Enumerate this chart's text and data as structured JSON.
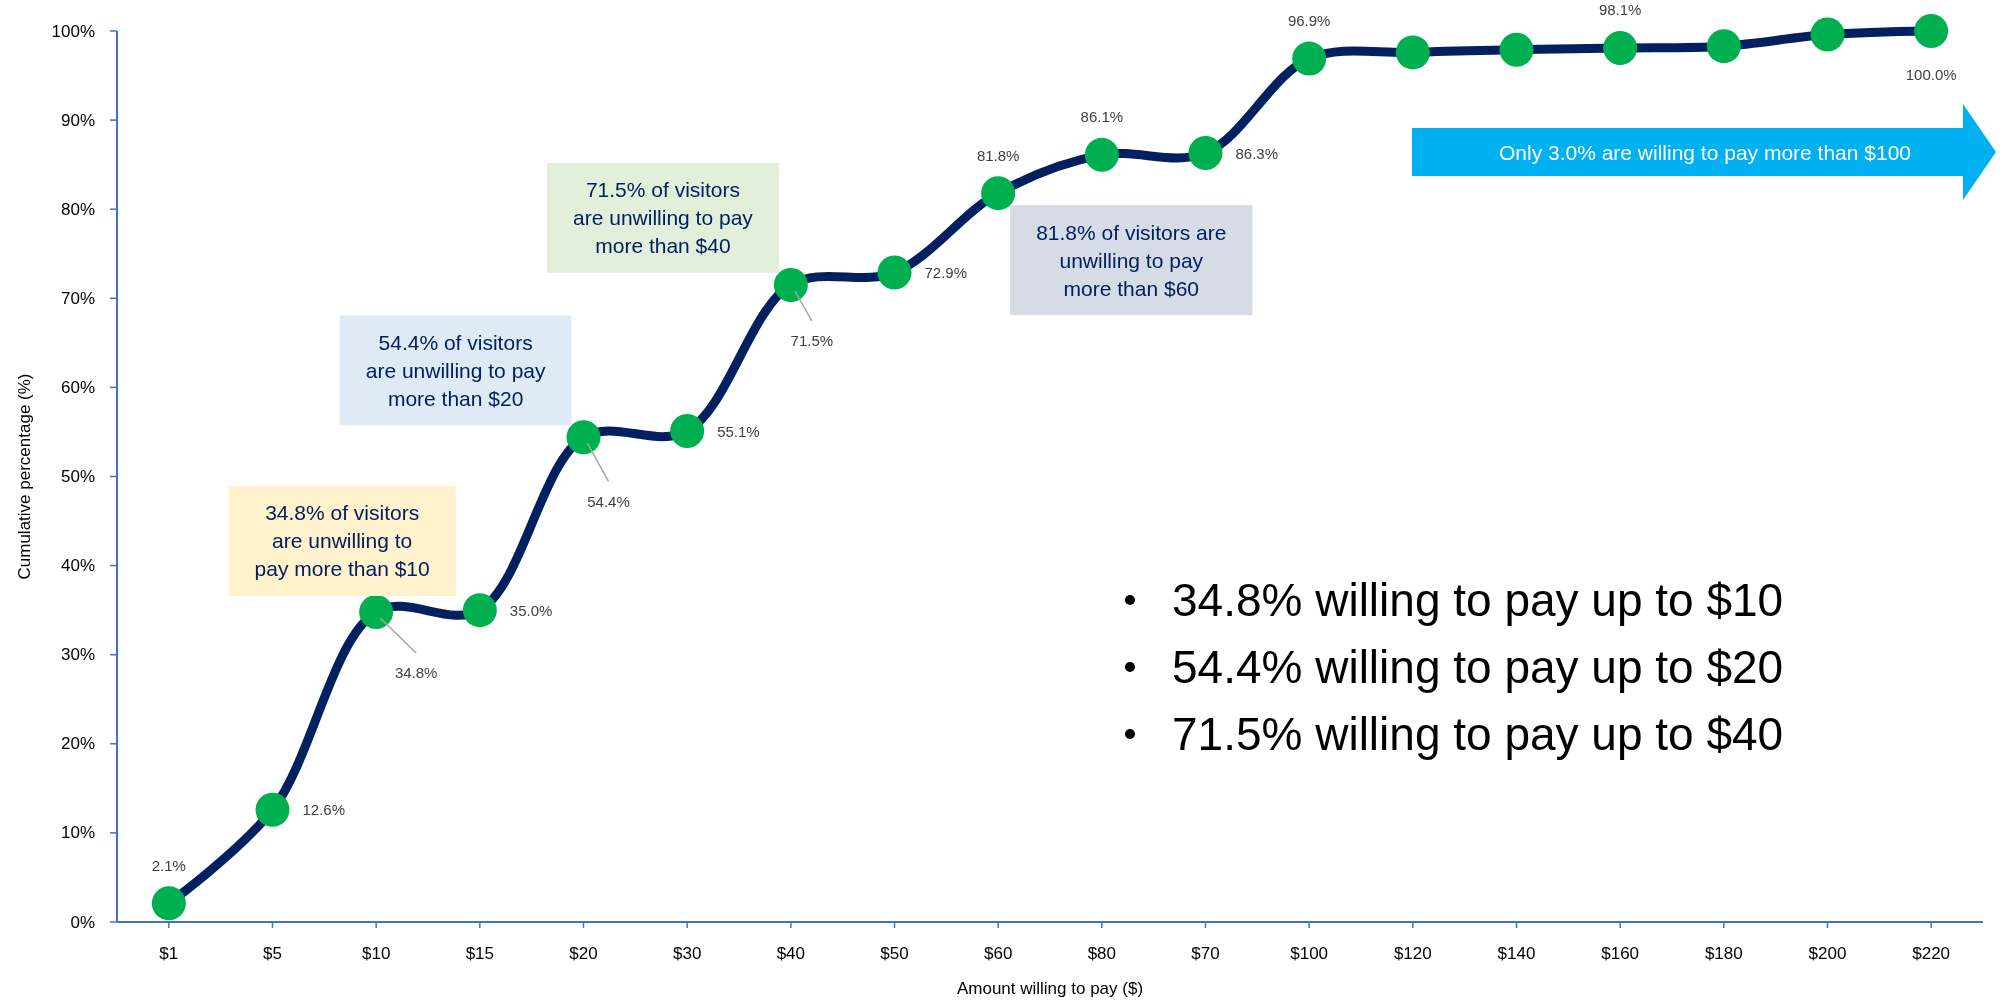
{
  "chart_data": {
    "type": "line",
    "xlabel": "Amount willing to pay ($)",
    "ylabel": "Cumulative percentage (%)",
    "categories": [
      "$1",
      "$5",
      "$10",
      "$15",
      "$20",
      "$30",
      "$40",
      "$50",
      "$60",
      "$80",
      "$70",
      "$100",
      "$120",
      "$140",
      "$160",
      "$180",
      "$200",
      "$220"
    ],
    "values": [
      2.1,
      12.6,
      34.8,
      35.0,
      54.4,
      55.1,
      71.5,
      72.9,
      81.8,
      86.1,
      86.3,
      96.9,
      97.6,
      97.9,
      98.1,
      98.3,
      99.6,
      100.0
    ],
    "color": "#002060",
    "colors": [
      "#00b050",
      "#00b050",
      "#00b050",
      "#00b050",
      "#00b050",
      "#00b050",
      "#00b050",
      "#00b050",
      "#00b050",
      "#00b050",
      "#00b050",
      "#00b050",
      "#00b050",
      "#00b050",
      "#00b050",
      "#00b050",
      "#00b050",
      "#00b050"
    ],
    "value_labels": [
      "2.1%",
      "12.6%",
      "34.8%",
      "35.0%",
      "54.4%",
      "55.1%",
      "71.5%",
      "72.9%",
      "81.8%",
      "86.1%",
      "86.3%",
      "96.9%",
      null,
      null,
      "98.1%",
      null,
      null,
      "100.0%"
    ],
    "marker": "circle",
    "line_style": "solid",
    "ylim": [
      0,
      100
    ],
    "yticks": [
      {
        "value": 0,
        "label": "0%"
      },
      {
        "value": 10,
        "label": "10%"
      },
      {
        "value": 20,
        "label": "20%"
      },
      {
        "value": 30,
        "label": "30%"
      },
      {
        "value": 40,
        "label": "40%"
      },
      {
        "value": 50,
        "label": "50%"
      },
      {
        "value": 60,
        "label": "60%"
      },
      {
        "value": 70,
        "label": "70%"
      },
      {
        "value": 80,
        "label": "80%"
      },
      {
        "value": 90,
        "label": "90%"
      },
      {
        "value": 100,
        "label": "100%"
      }
    ],
    "annotations": [
      {
        "text": "34.8% of visitors are unwilling to pay more than $10",
        "x": "$10",
        "y": 34.8
      },
      {
        "text": "54.4% of visitors are unwilling to pay more than $20",
        "x": "$20",
        "y": 54.4
      },
      {
        "text": "71.5% of visitors are unwilling to pay more than $40",
        "x": "$40",
        "y": 71.5
      },
      {
        "text": "81.8% of visitors are unwilling to pay more than $60",
        "x": "$60",
        "y": 81.8
      },
      "Only 3.0% are willing to pay more than $100",
      "34.8% willing to pay up to $10",
      "54.4% willing to pay up to $20",
      "71.5% willing to pay up to $40"
    ]
  }
}
